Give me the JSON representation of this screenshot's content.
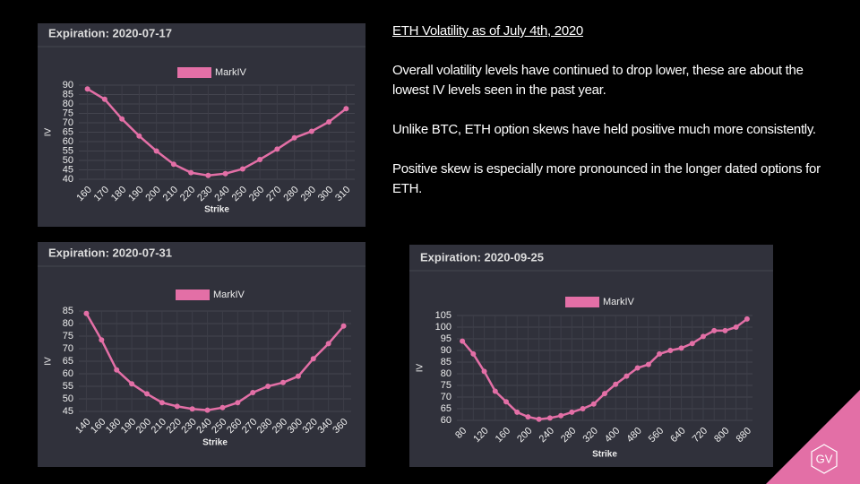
{
  "text": {
    "title": "ETH Volatility as of July 4th, 2020",
    "paragraphs": [
      "Overall volatility levels have continued to drop lower, these are about the lowest IV levels seen in the past year.",
      "Unlike BTC, ETH option skews have held positive much more consistently.",
      "Positive skew is especially more pronounced in the longer dated options for ETH."
    ]
  },
  "logo": "GV",
  "chart_data": [
    {
      "type": "line",
      "title": "Expiration: 2020-07-17",
      "x_label": "Strike",
      "y_label": "IV",
      "grid": true,
      "categories": [
        "160",
        "170",
        "180",
        "190",
        "200",
        "210",
        "220",
        "230",
        "240",
        "250",
        "260",
        "270",
        "280",
        "290",
        "300",
        "310"
      ],
      "series": [
        {
          "name": "MarkIV",
          "color": "#e36fa6",
          "values": [
            88,
            82.5,
            72,
            63,
            55,
            48,
            43.5,
            42,
            43,
            45.5,
            50.5,
            56,
            62,
            65.5,
            70.5,
            77.5
          ]
        }
      ],
      "ylim": [
        40,
        90
      ],
      "yticks": [
        40,
        45,
        50,
        55,
        60,
        65,
        70,
        75,
        80,
        85,
        90
      ]
    },
    {
      "type": "line",
      "title": "Expiration: 2020-07-31",
      "x_label": "Strike",
      "y_label": "IV",
      "grid": true,
      "categories": [
        "140",
        "160",
        "180",
        "190",
        "200",
        "210",
        "220",
        "230",
        "240",
        "250",
        "260",
        "270",
        "280",
        "290",
        "300",
        "320",
        "340",
        "360"
      ],
      "series": [
        {
          "name": "MarkIV",
          "color": "#e36fa6",
          "values": [
            84,
            73.5,
            61.5,
            56,
            52,
            48.5,
            47,
            46,
            45.5,
            46.5,
            48.5,
            52.5,
            55,
            56.5,
            59,
            66,
            72,
            79
          ]
        }
      ],
      "ylim": [
        45,
        85
      ],
      "yticks": [
        45,
        50,
        55,
        60,
        65,
        70,
        75,
        80,
        85
      ]
    },
    {
      "type": "line",
      "title": "Expiration: 2020-09-25",
      "x_label": "Strike",
      "y_label": "IV",
      "grid": true,
      "categories": [
        "80",
        null,
        "120",
        null,
        "160",
        null,
        "200",
        null,
        "240",
        null,
        "280",
        null,
        "320",
        null,
        "400",
        null,
        "480",
        null,
        "560",
        null,
        "640",
        null,
        "720",
        null,
        "800",
        null,
        "880"
      ],
      "series": [
        {
          "name": "MarkIV",
          "color": "#e36fa6",
          "values": [
            94,
            88.5,
            81,
            72.5,
            68,
            63.5,
            61.5,
            60.5,
            61,
            62,
            63.5,
            65,
            67,
            71.5,
            75.5,
            79,
            82.5,
            84,
            88.5,
            90,
            91,
            93,
            96,
            98.5,
            98.5,
            100,
            103.5
          ]
        }
      ],
      "ylim": [
        60,
        105
      ],
      "yticks": [
        60,
        65,
        70,
        75,
        80,
        85,
        90,
        95,
        100,
        105
      ]
    }
  ]
}
